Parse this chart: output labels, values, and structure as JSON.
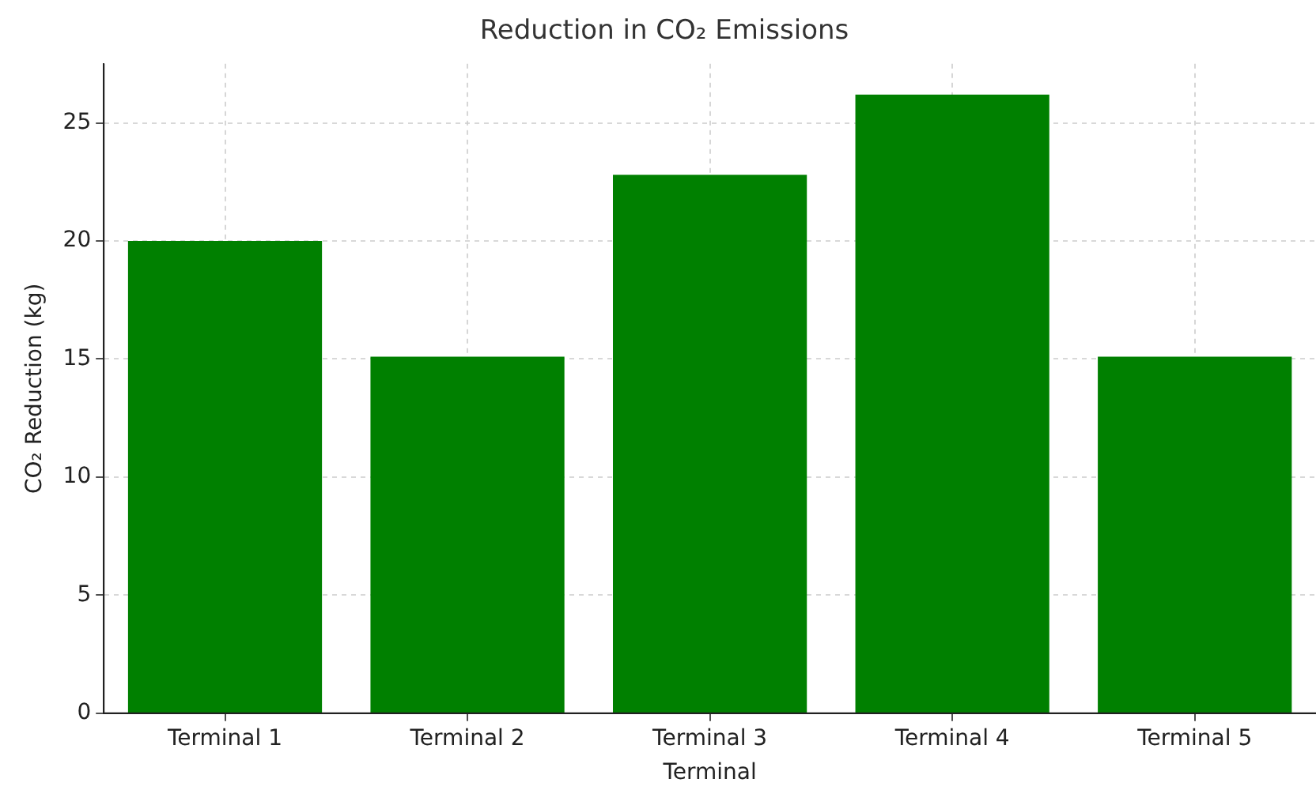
{
  "chart_data": {
    "type": "bar",
    "title": "Reduction in CO₂ Emissions",
    "xlabel": "Terminal",
    "ylabel": "CO₂ Reduction (kg)",
    "categories": [
      "Terminal 1",
      "Terminal 2",
      "Terminal 3",
      "Terminal 4",
      "Terminal 5"
    ],
    "values": [
      20,
      15.1,
      22.8,
      26.2,
      15.1
    ],
    "color": "#008000",
    "ylim": [
      0,
      27.5
    ],
    "yticks": [
      0,
      5,
      10,
      15,
      20,
      25
    ],
    "grid": true
  }
}
